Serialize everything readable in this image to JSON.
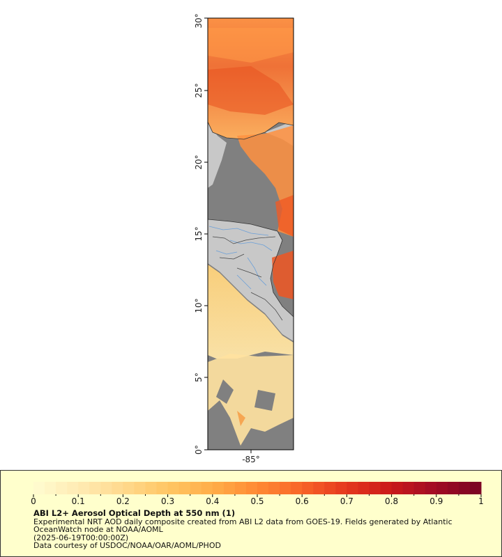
{
  "map": {
    "latitude_labels": [
      "0°",
      "5°",
      "10°",
      "15°",
      "20°",
      "25°",
      "30°"
    ],
    "longitude_labels": [
      "-85°"
    ],
    "colors": {
      "land": "#c8c8c8",
      "no_data_ocean": "#808080",
      "coastline": "#333333",
      "rivers": "#6a9fd8",
      "borders": "#444444"
    }
  },
  "legend": {
    "colorbar": {
      "min": 0,
      "max": 1,
      "tick_labels": [
        "0",
        "0.1",
        "0.2",
        "0.3",
        "0.4",
        "0.5",
        "0.6",
        "0.7",
        "0.8",
        "0.9",
        "1"
      ],
      "colors": [
        "#fffacd",
        "#ffe9b0",
        "#ffd88a",
        "#ffc562",
        "#ffac48",
        "#ff8a34",
        "#f86528",
        "#e63a1e",
        "#cc1a1a",
        "#a40c24",
        "#7d0424"
      ]
    },
    "title": "ABI L2+ Aerosol Optical Depth at 550 nm (1)",
    "lines": [
      "Experimental NRT AOD daily composite created from ABI L2 data from GOES-19. Fields generated by Atlantic OceanWatch node at NOAA/AOML",
      "(2025-06-19T00:00:00Z)",
      "Data courtesy of USDOC/NOAA/OAR/AOML/PHOD"
    ]
  }
}
